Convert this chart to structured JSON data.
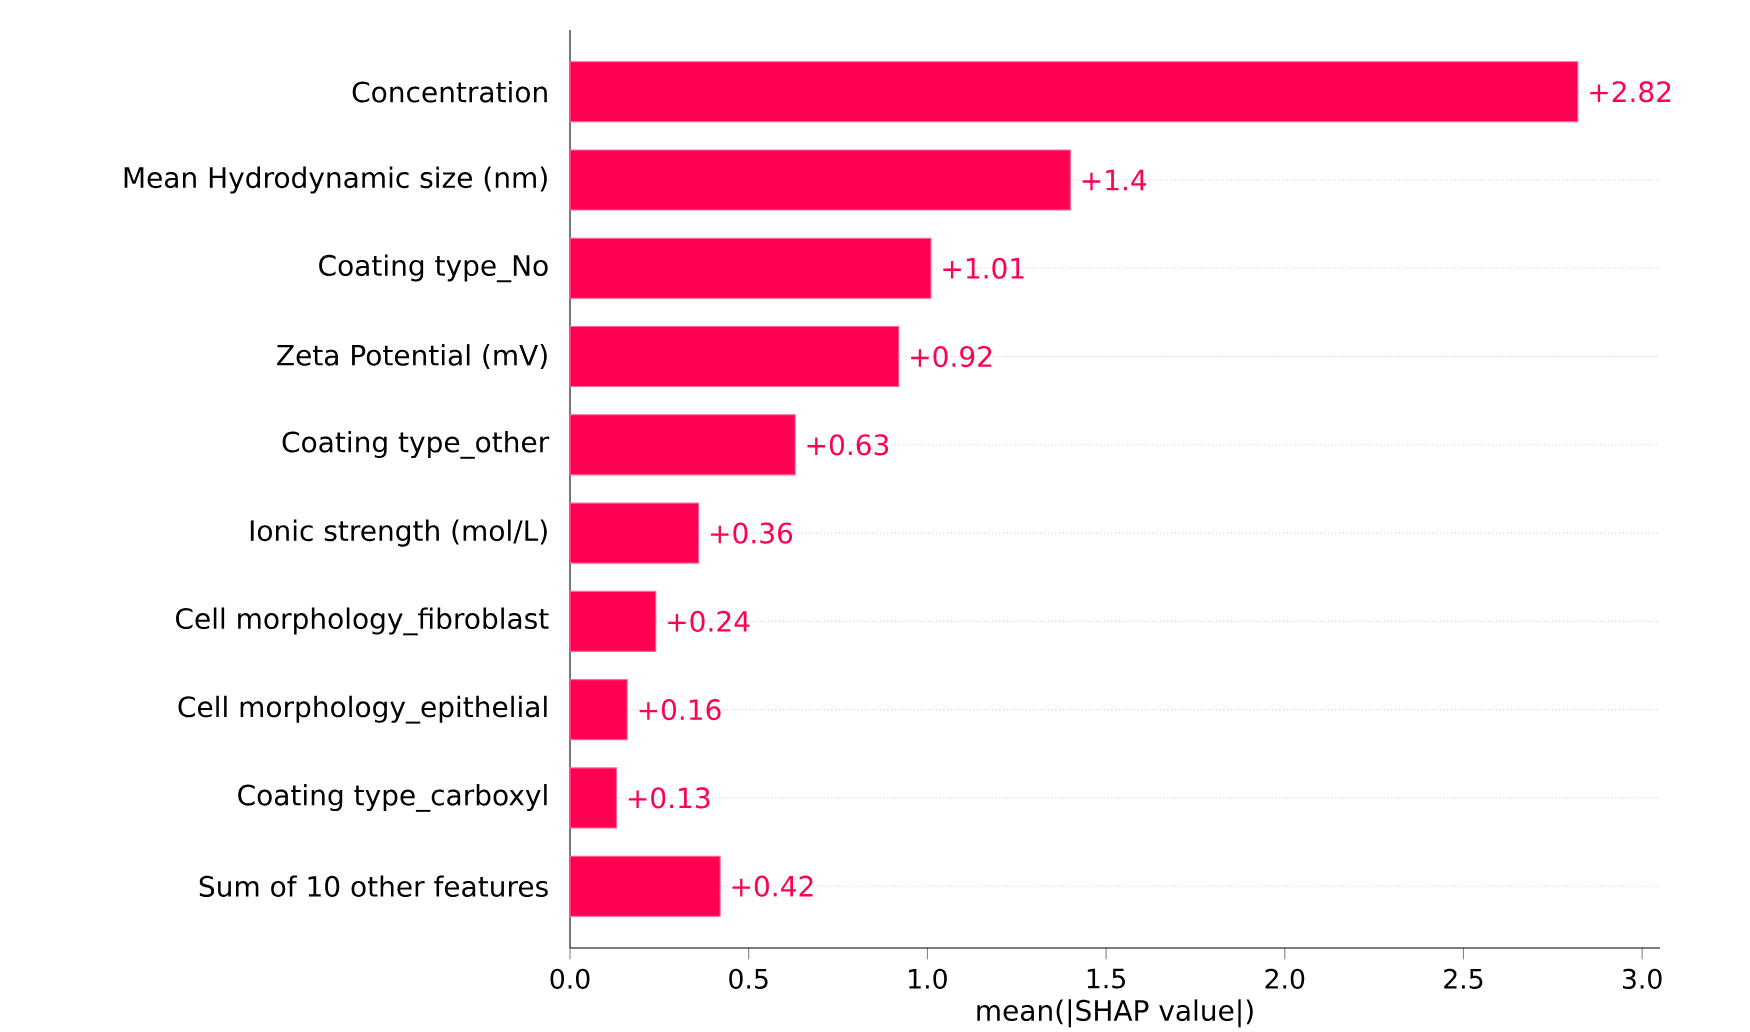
{
  "chart_data": {
    "type": "bar",
    "orientation": "horizontal",
    "xlabel": "mean(|SHAP value|)",
    "categories": [
      "Concentration",
      "Mean Hydrodynamic size (nm)",
      "Coating type_No",
      "Zeta Potential  (mV)",
      "Coating type_other",
      "Ionic strength (mol/L)",
      "Cell morphology_fibroblast",
      "Cell morphology_epithelial",
      "Coating type_carboxyl",
      "Sum of 10 other features"
    ],
    "values": [
      2.82,
      1.4,
      1.01,
      0.92,
      0.63,
      0.36,
      0.24,
      0.16,
      0.13,
      0.42
    ],
    "value_labels": [
      "+2.82",
      "+1.4",
      "+1.01",
      "+0.92",
      "+0.63",
      "+0.36",
      "+0.24",
      "+0.16",
      "+0.13",
      "+0.42"
    ],
    "color": "#ff0052",
    "xlim": [
      0,
      3.05
    ],
    "xticks": [
      {
        "value": 0,
        "label": "0.0"
      },
      {
        "value": 0.5,
        "label": "0.5"
      },
      {
        "value": 1,
        "label": "1.0"
      },
      {
        "value": 1.5,
        "label": "1.5"
      },
      {
        "value": 2,
        "label": "2.0"
      },
      {
        "value": 2.5,
        "label": "2.5"
      },
      {
        "value": 3,
        "label": "3.0"
      }
    ],
    "grid": "y"
  }
}
